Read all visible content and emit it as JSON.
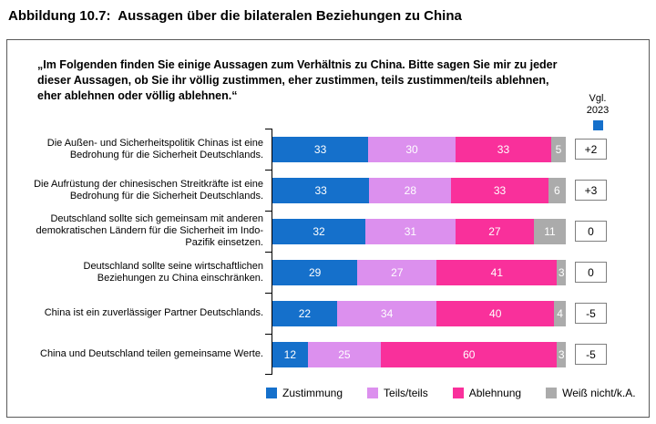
{
  "title": "Abbildung 10.7:  Aussagen über die bilateralen Beziehungen zu China",
  "intro_lines": [
    "„Im Folgenden finden Sie einige Aussagen zum Verhältnis zu China. Bitte sagen Sie mir zu jeder",
    "dieser Aussagen, ob Sie ihr völlig zustimmen, eher zustimmen, teils zustimmen/teils ablehnen,",
    "eher ablehnen oder völlig ablehnen.“"
  ],
  "comparison_header": {
    "line1": "Vgl.",
    "line2": "2023"
  },
  "colors": {
    "zustimmung_blue": "#1570CB",
    "teils_purple": "#DC90EE",
    "ablehnung_pink": "#F9309B",
    "weiss_nicht_gray": "#ABABAB",
    "frame_border": "#595959",
    "axis_black": "#000000"
  },
  "chart_data": {
    "type": "bar",
    "orientation": "horizontal",
    "stacked": true,
    "value_unit": "percent",
    "xlim": [
      0,
      100
    ],
    "legend_position": "bottom",
    "categories": [
      {
        "lines": [
          "Die Außen- und Sicherheitspolitik Chinas ist eine",
          "Bedrohung für die Sicherheit Deutschlands."
        ]
      },
      {
        "lines": [
          "Die Aufrüstung der chinesischen Streitkräfte ist eine",
          "Bedrohung für die Sicherheit Deutschlands."
        ]
      },
      {
        "lines": [
          "Deutschland sollte sich gemeinsam mit anderen",
          "demokratischen Ländern für die Sicherheit im Indo-",
          "Pazifik einsetzen."
        ]
      },
      {
        "lines": [
          "Deutschland sollte seine wirtschaftlichen",
          "Beziehungen zu China einschränken."
        ]
      },
      {
        "lines": [
          "China ist ein zuverlässiger Partner Deutschlands."
        ]
      },
      {
        "lines": [
          "China und Deutschland teilen gemeinsame Werte."
        ]
      }
    ],
    "series": [
      {
        "name": "Zustimmung",
        "color": "#1570CB",
        "values": [
          33,
          33,
          32,
          29,
          22,
          12
        ]
      },
      {
        "name": "Teils/teils",
        "color": "#DC90EE",
        "values": [
          30,
          28,
          31,
          27,
          34,
          25
        ]
      },
      {
        "name": "Ablehnung",
        "color": "#F9309B",
        "values": [
          33,
          33,
          27,
          41,
          40,
          60
        ]
      },
      {
        "name": "Weiß nicht/k.A.",
        "color": "#ABABAB",
        "values": [
          5,
          6,
          11,
          3,
          4,
          3
        ]
      }
    ],
    "comparison_2023": [
      "+2",
      "+3",
      "0",
      "0",
      "-5",
      "-5"
    ]
  }
}
